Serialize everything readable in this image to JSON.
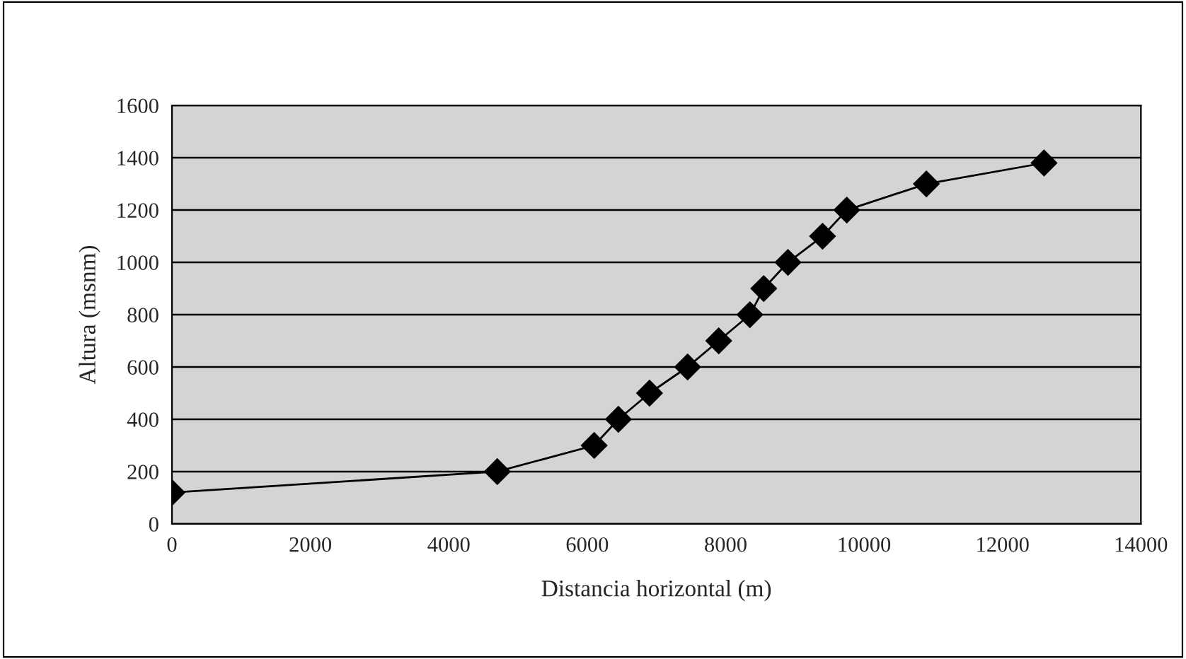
{
  "chart_data": {
    "type": "line",
    "xlabel": "Distancia horizontal (m)",
    "ylabel": "Altura (msnm)",
    "x": [
      0,
      4700,
      6100,
      6450,
      6900,
      7450,
      7900,
      8350,
      8550,
      8900,
      9400,
      9750,
      10900,
      12600
    ],
    "series": [
      {
        "color": "#000000",
        "values": [
          120,
          200,
          300,
          400,
          500,
          600,
          700,
          800,
          900,
          1000,
          1100,
          1200,
          1300,
          1380
        ]
      }
    ],
    "xlim": [
      0,
      14000
    ],
    "xticks": [
      0,
      2000,
      4000,
      6000,
      8000,
      10000,
      12000,
      14000
    ],
    "ylim": [
      0,
      1600
    ],
    "yticks": [
      0,
      200,
      400,
      600,
      800,
      1000,
      1200,
      1400,
      1600
    ],
    "grid": "y",
    "marker": "diamond",
    "line_style": "solid"
  }
}
